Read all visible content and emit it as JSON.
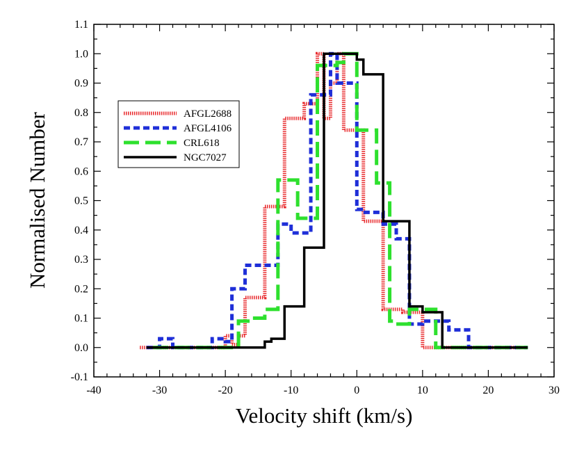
{
  "chart_data": {
    "type": "line",
    "subtype": "step-histogram",
    "title": "",
    "xlabel": "Velocity shift (km/s)",
    "ylabel": "Normalised Number",
    "xlim": [
      -40,
      30
    ],
    "ylim": [
      -0.1,
      1.1
    ],
    "xticks": [
      -40,
      -30,
      -20,
      -10,
      0,
      10,
      20,
      30
    ],
    "xtick_labels": [
      "-40",
      "-30",
      "-20",
      "-10",
      "0",
      "10",
      "20",
      "30"
    ],
    "yticks": [
      -0.1,
      0.0,
      0.1,
      0.2,
      0.3,
      0.4,
      0.5,
      0.6,
      0.7,
      0.8,
      0.9,
      1.0,
      1.1
    ],
    "ytick_labels": [
      "-0.1",
      "0.0",
      "0.1",
      "0.2",
      "0.3",
      "0.4",
      "0.5",
      "0.6",
      "0.7",
      "0.8",
      "0.9",
      "1.0",
      "1.1"
    ],
    "legend_position": "upper-left",
    "series": [
      {
        "name": "AFGL2688",
        "color": "#e8282b",
        "style": "dotted-thick",
        "edges": [
          -33,
          -20,
          -19,
          -18,
          -17,
          -15,
          -14,
          -13,
          -11,
          -8,
          -6,
          -5,
          -4,
          -3,
          -2,
          -1,
          1,
          2,
          4,
          7,
          10,
          26
        ],
        "values": [
          0,
          0.04,
          0.01,
          0.04,
          0.17,
          0.17,
          0.48,
          0.48,
          0.78,
          0.83,
          1.0,
          0.78,
          0.9,
          1.0,
          0.74,
          0.74,
          0.43,
          0.43,
          0.13,
          0.12,
          0.0
        ]
      },
      {
        "name": "AFGL4106",
        "color": "#1f2fd8",
        "style": "dashed-short",
        "edges": [
          -32,
          -30,
          -28,
          -22,
          -20,
          -19,
          -17,
          -15,
          -14,
          -12,
          -10,
          -9,
          -8,
          -7,
          -6,
          -4,
          -3,
          -2,
          -1,
          0,
          1,
          2,
          4,
          6,
          8,
          10,
          12,
          13,
          14,
          17,
          26
        ],
        "values": [
          0,
          0.03,
          0.0,
          0.03,
          0.02,
          0.2,
          0.28,
          0.28,
          0.28,
          0.42,
          0.39,
          0.39,
          0.39,
          0.86,
          0.86,
          1.0,
          0.9,
          0.9,
          0.9,
          0.47,
          0.46,
          0.46,
          0.42,
          0.37,
          0.08,
          0.09,
          0.09,
          0.09,
          0.06,
          0.0
        ]
      },
      {
        "name": "CRL618",
        "color": "#2ee02e",
        "style": "dashed-long",
        "edges": [
          -31,
          -18,
          -16,
          -14,
          -12,
          -11,
          -9,
          -8,
          -7,
          -6,
          -5,
          -3,
          -2,
          -1,
          0,
          1,
          2,
          3,
          4,
          5,
          6,
          8,
          10,
          12,
          26
        ],
        "values": [
          0,
          0.09,
          0.1,
          0.13,
          0.57,
          0.57,
          0.44,
          0.44,
          0.44,
          0.96,
          0.96,
          0.97,
          1.0,
          1.0,
          0.74,
          0.74,
          0.74,
          0.56,
          0.56,
          0.09,
          0.08,
          0.13,
          0.13,
          0.0
        ]
      },
      {
        "name": "NGC7027",
        "color": "#000000",
        "style": "solid",
        "edges": [
          -32,
          -14,
          -13,
          -11,
          -9,
          -8,
          -5,
          -4,
          -2,
          0,
          1,
          2,
          4,
          6,
          8,
          10,
          12,
          13,
          26
        ],
        "values": [
          0,
          0.02,
          0.03,
          0.14,
          0.14,
          0.34,
          1.0,
          1.0,
          1.0,
          0.98,
          0.93,
          0.93,
          0.43,
          0.43,
          0.14,
          0.12,
          0.12,
          0.0
        ]
      }
    ]
  }
}
